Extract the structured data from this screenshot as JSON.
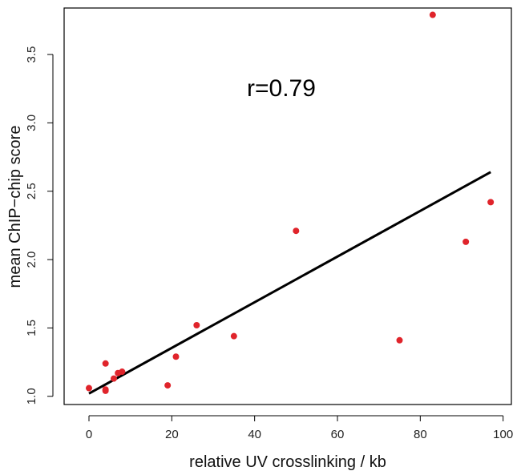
{
  "chart_data": {
    "type": "scatter",
    "xlabel": "relative UV crosslinking / kb",
    "ylabel": "mean ChIP−chip score",
    "annotation": "r=0.79",
    "xlim": [
      -6,
      102
    ],
    "ylim": [
      0.94,
      3.84
    ],
    "x_ticks": [
      0,
      20,
      40,
      60,
      80,
      100
    ],
    "y_ticks": [
      1.0,
      1.5,
      2.0,
      2.5,
      3.0,
      3.5
    ],
    "x_tick_labels": [
      "0",
      "20",
      "40",
      "60",
      "80",
      "100"
    ],
    "y_tick_labels": [
      "1.0",
      "1.5",
      "2.0",
      "2.5",
      "3.0",
      "3.5"
    ],
    "grid": false,
    "point_color": "#e0242b",
    "line_color": "#000000",
    "points": [
      {
        "x": 0,
        "y": 1.06
      },
      {
        "x": 4,
        "y": 1.04
      },
      {
        "x": 4,
        "y": 1.05
      },
      {
        "x": 4,
        "y": 1.24
      },
      {
        "x": 6,
        "y": 1.13
      },
      {
        "x": 7,
        "y": 1.17
      },
      {
        "x": 8,
        "y": 1.18
      },
      {
        "x": 19,
        "y": 1.08
      },
      {
        "x": 21,
        "y": 1.29
      },
      {
        "x": 26,
        "y": 1.52
      },
      {
        "x": 35,
        "y": 1.44
      },
      {
        "x": 50,
        "y": 2.21
      },
      {
        "x": 75,
        "y": 1.41
      },
      {
        "x": 83,
        "y": 3.79
      },
      {
        "x": 91,
        "y": 2.13
      },
      {
        "x": 97,
        "y": 2.42
      }
    ],
    "fit_line": {
      "x1": 0,
      "y1": 1.02,
      "x2": 97,
      "y2": 2.64
    }
  }
}
